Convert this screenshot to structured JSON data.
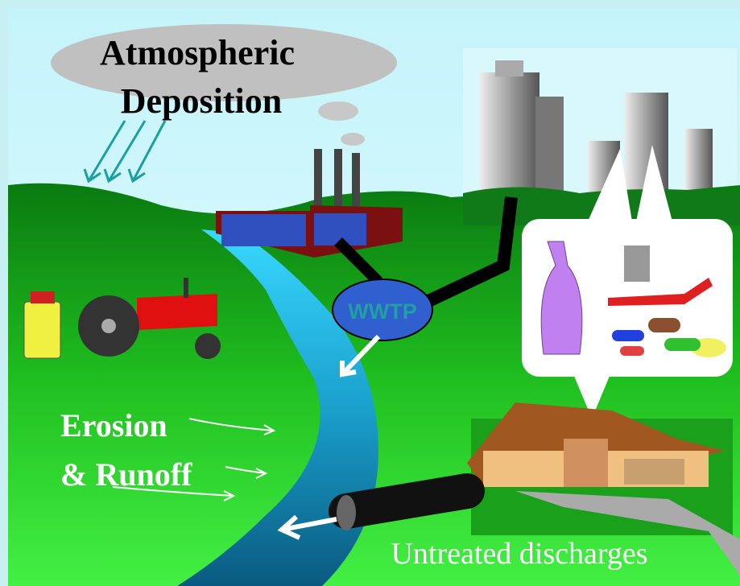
{
  "cloud": {
    "lines": [
      "Atmospheric",
      "Deposition"
    ]
  },
  "plant": {
    "label": "WWTP"
  },
  "runoff": {
    "lines": [
      "Erosion",
      "& Runoff"
    ]
  },
  "discharge": {
    "label": "Untreated discharges"
  }
}
